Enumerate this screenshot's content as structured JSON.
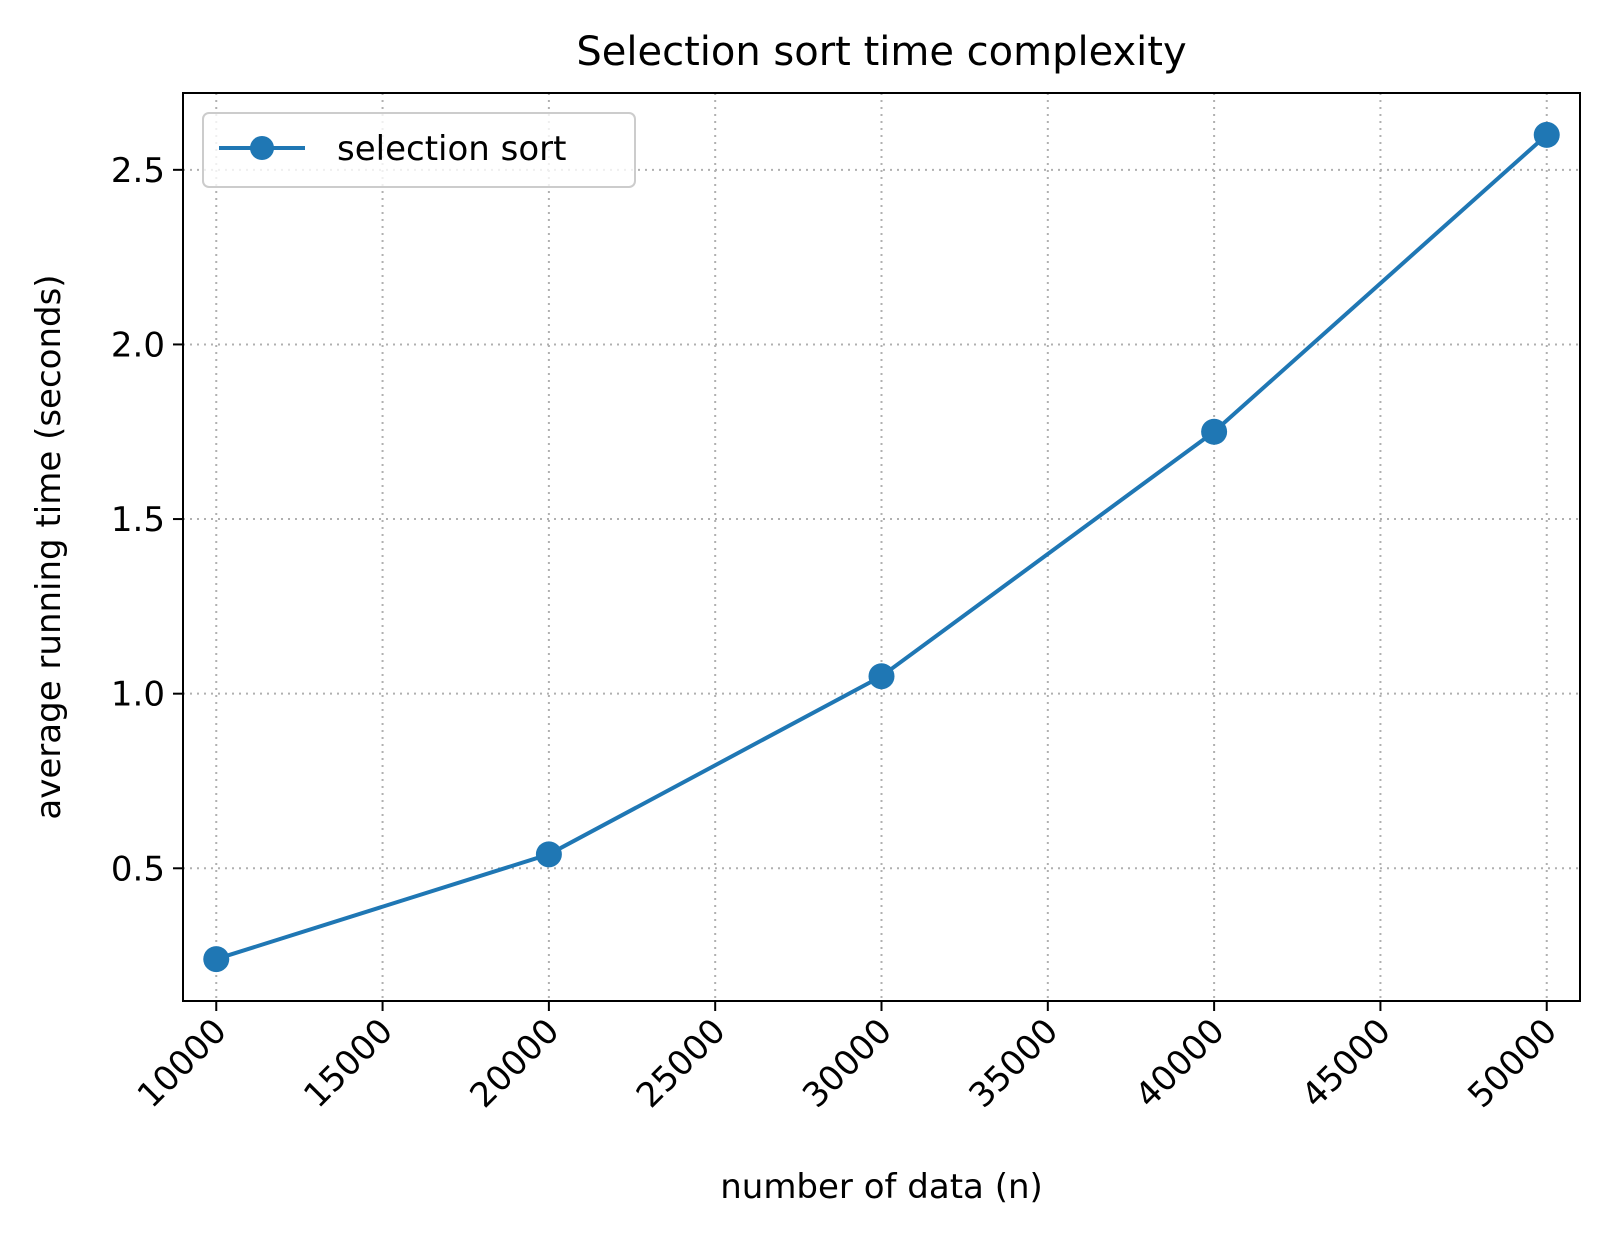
{
  "chart_data": {
    "type": "line",
    "title": "Selection sort time complexity",
    "xlabel": "number of data (n)",
    "ylabel": "average running time (seconds)",
    "x_ticks": [
      "10000",
      "15000",
      "20000",
      "25000",
      "30000",
      "35000",
      "40000",
      "45000",
      "50000"
    ],
    "x_tick_values": [
      10000,
      15000,
      20000,
      25000,
      30000,
      35000,
      40000,
      45000,
      50000
    ],
    "y_ticks": [
      "0.5",
      "1.0",
      "1.5",
      "2.0",
      "2.5"
    ],
    "y_tick_values": [
      0.5,
      1.0,
      1.5,
      2.0,
      2.5
    ],
    "xlim": [
      9000,
      51000
    ],
    "ylim": [
      0.12,
      2.72
    ],
    "x_tick_rotation_deg": -45,
    "grid": true,
    "legend_position": "upper-left",
    "series": [
      {
        "name": "selection sort",
        "color": "#1f77b4",
        "marker": "circle",
        "x": [
          10000,
          20000,
          30000,
          40000,
          50000
        ],
        "y": [
          0.24,
          0.54,
          1.05,
          1.75,
          2.6
        ]
      }
    ]
  }
}
